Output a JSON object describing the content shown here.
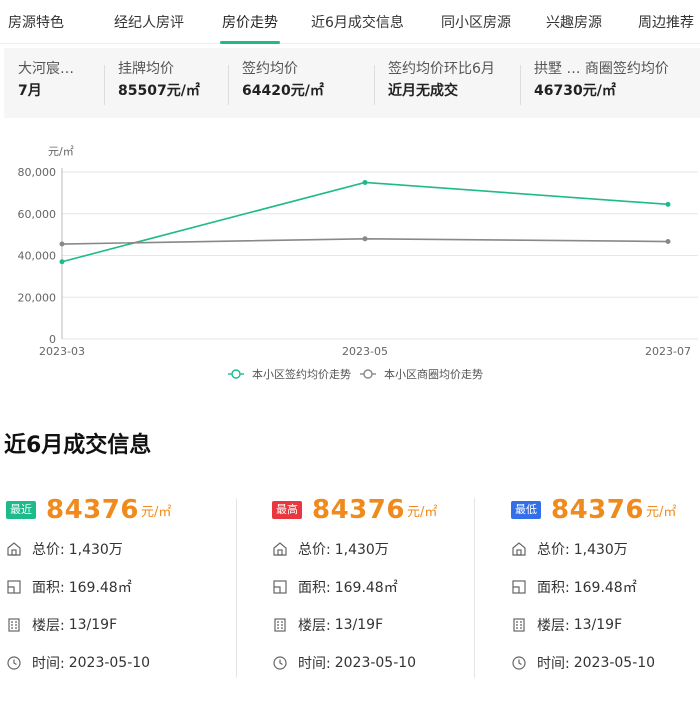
{
  "tabs": [
    {
      "label": "房源特色",
      "active": false
    },
    {
      "label": "经纪人房评",
      "active": false
    },
    {
      "label": "房价走势",
      "active": true
    },
    {
      "label": "近6月成交信息",
      "active": false
    },
    {
      "label": "同小区房源",
      "active": false
    },
    {
      "label": "兴趣房源",
      "active": false
    },
    {
      "label": "周边推荐",
      "active": false
    }
  ],
  "stats": [
    {
      "label": "大河宸…",
      "value": "7月"
    },
    {
      "label": "挂牌均价",
      "value": "85507元/㎡"
    },
    {
      "label": "签约均价",
      "value": "64420元/㎡"
    },
    {
      "label": "签约均价环比6月",
      "value": "近月无成交"
    },
    {
      "label": "拱墅 … 商圈签约均价",
      "value": "46730元/㎡"
    }
  ],
  "chart_data": {
    "type": "line",
    "ylabel": "元/㎡",
    "x": [
      "2023-03",
      "2023-05",
      "2023-07"
    ],
    "ylim": [
      0,
      80000
    ],
    "yticks": [
      "0",
      "20,000",
      "40,000",
      "60,000",
      "80,000"
    ],
    "grid": true,
    "legend_position": "bottom",
    "series": [
      {
        "name": "本小区签约均价走势",
        "color": "#1dba8c",
        "values": [
          37000,
          75000,
          64500
        ]
      },
      {
        "name": "本小区商圈均价走势",
        "color": "#888888",
        "values": [
          45500,
          48000,
          46700
        ]
      }
    ]
  },
  "section_title": "近6月成交信息",
  "colors": {
    "accent": "#1dba8c",
    "price": "#f08a1c",
    "badge_recent": "#1dba8c",
    "badge_high": "#e8383d",
    "badge_low": "#3370e8"
  },
  "deals": [
    {
      "badge": "最近",
      "badge_color": "#1dba8c",
      "price": "84376",
      "unit": "元/㎡",
      "total_label": "总价:",
      "total": "1,430万",
      "area_label": "面积:",
      "area": "169.48㎡",
      "floor_label": "楼层:",
      "floor": "13/19F",
      "time_label": "时间:",
      "time": "2023-05-10"
    },
    {
      "badge": "最高",
      "badge_color": "#e8383d",
      "price": "84376",
      "unit": "元/㎡",
      "total_label": "总价:",
      "total": "1,430万",
      "area_label": "面积:",
      "area": "169.48㎡",
      "floor_label": "楼层:",
      "floor": "13/19F",
      "time_label": "时间:",
      "time": "2023-05-10"
    },
    {
      "badge": "最低",
      "badge_color": "#3370e8",
      "price": "84376",
      "unit": "元/㎡",
      "total_label": "总价:",
      "total": "1,430万",
      "area_label": "面积:",
      "area": "169.48㎡",
      "floor_label": "楼层:",
      "floor": "13/19F",
      "time_label": "时间:",
      "time": "2023-05-10"
    }
  ]
}
